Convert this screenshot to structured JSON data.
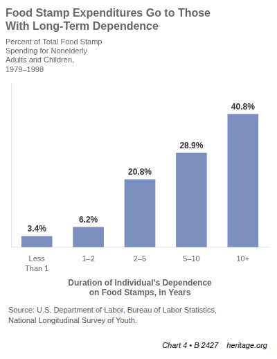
{
  "chart_data": {
    "type": "bar",
    "title": "Food Stamp Expenditures Go to Those\nWith Long-Term Dependence",
    "subtitle": "Percent of Total Food Stamp\nSpending for Nonelderly\nAdults and Children,\n1979–1998",
    "categories": [
      "Less\nThan 1",
      "1–2",
      "2–5",
      "5–10",
      "10+"
    ],
    "values": [
      3.4,
      6.2,
      20.8,
      28.9,
      40.8
    ],
    "value_labels": [
      "3.4%",
      "6.2%",
      "20.8%",
      "28.9%",
      "40.8%"
    ],
    "data_labels": true,
    "color": "#7b8fbf",
    "xlabel": "Duration of Individual’s Dependence\non Food Stamps, in Years",
    "source": "Source: U.S. Department of Labor, Bureau of Labor Statistics,\nNational Longitudinal Survey of Youth.",
    "footer": "Chart 4 • B 2427    heritage.org",
    "ylim": [
      0,
      50
    ],
    "grid": false,
    "tick_labels": "x"
  }
}
